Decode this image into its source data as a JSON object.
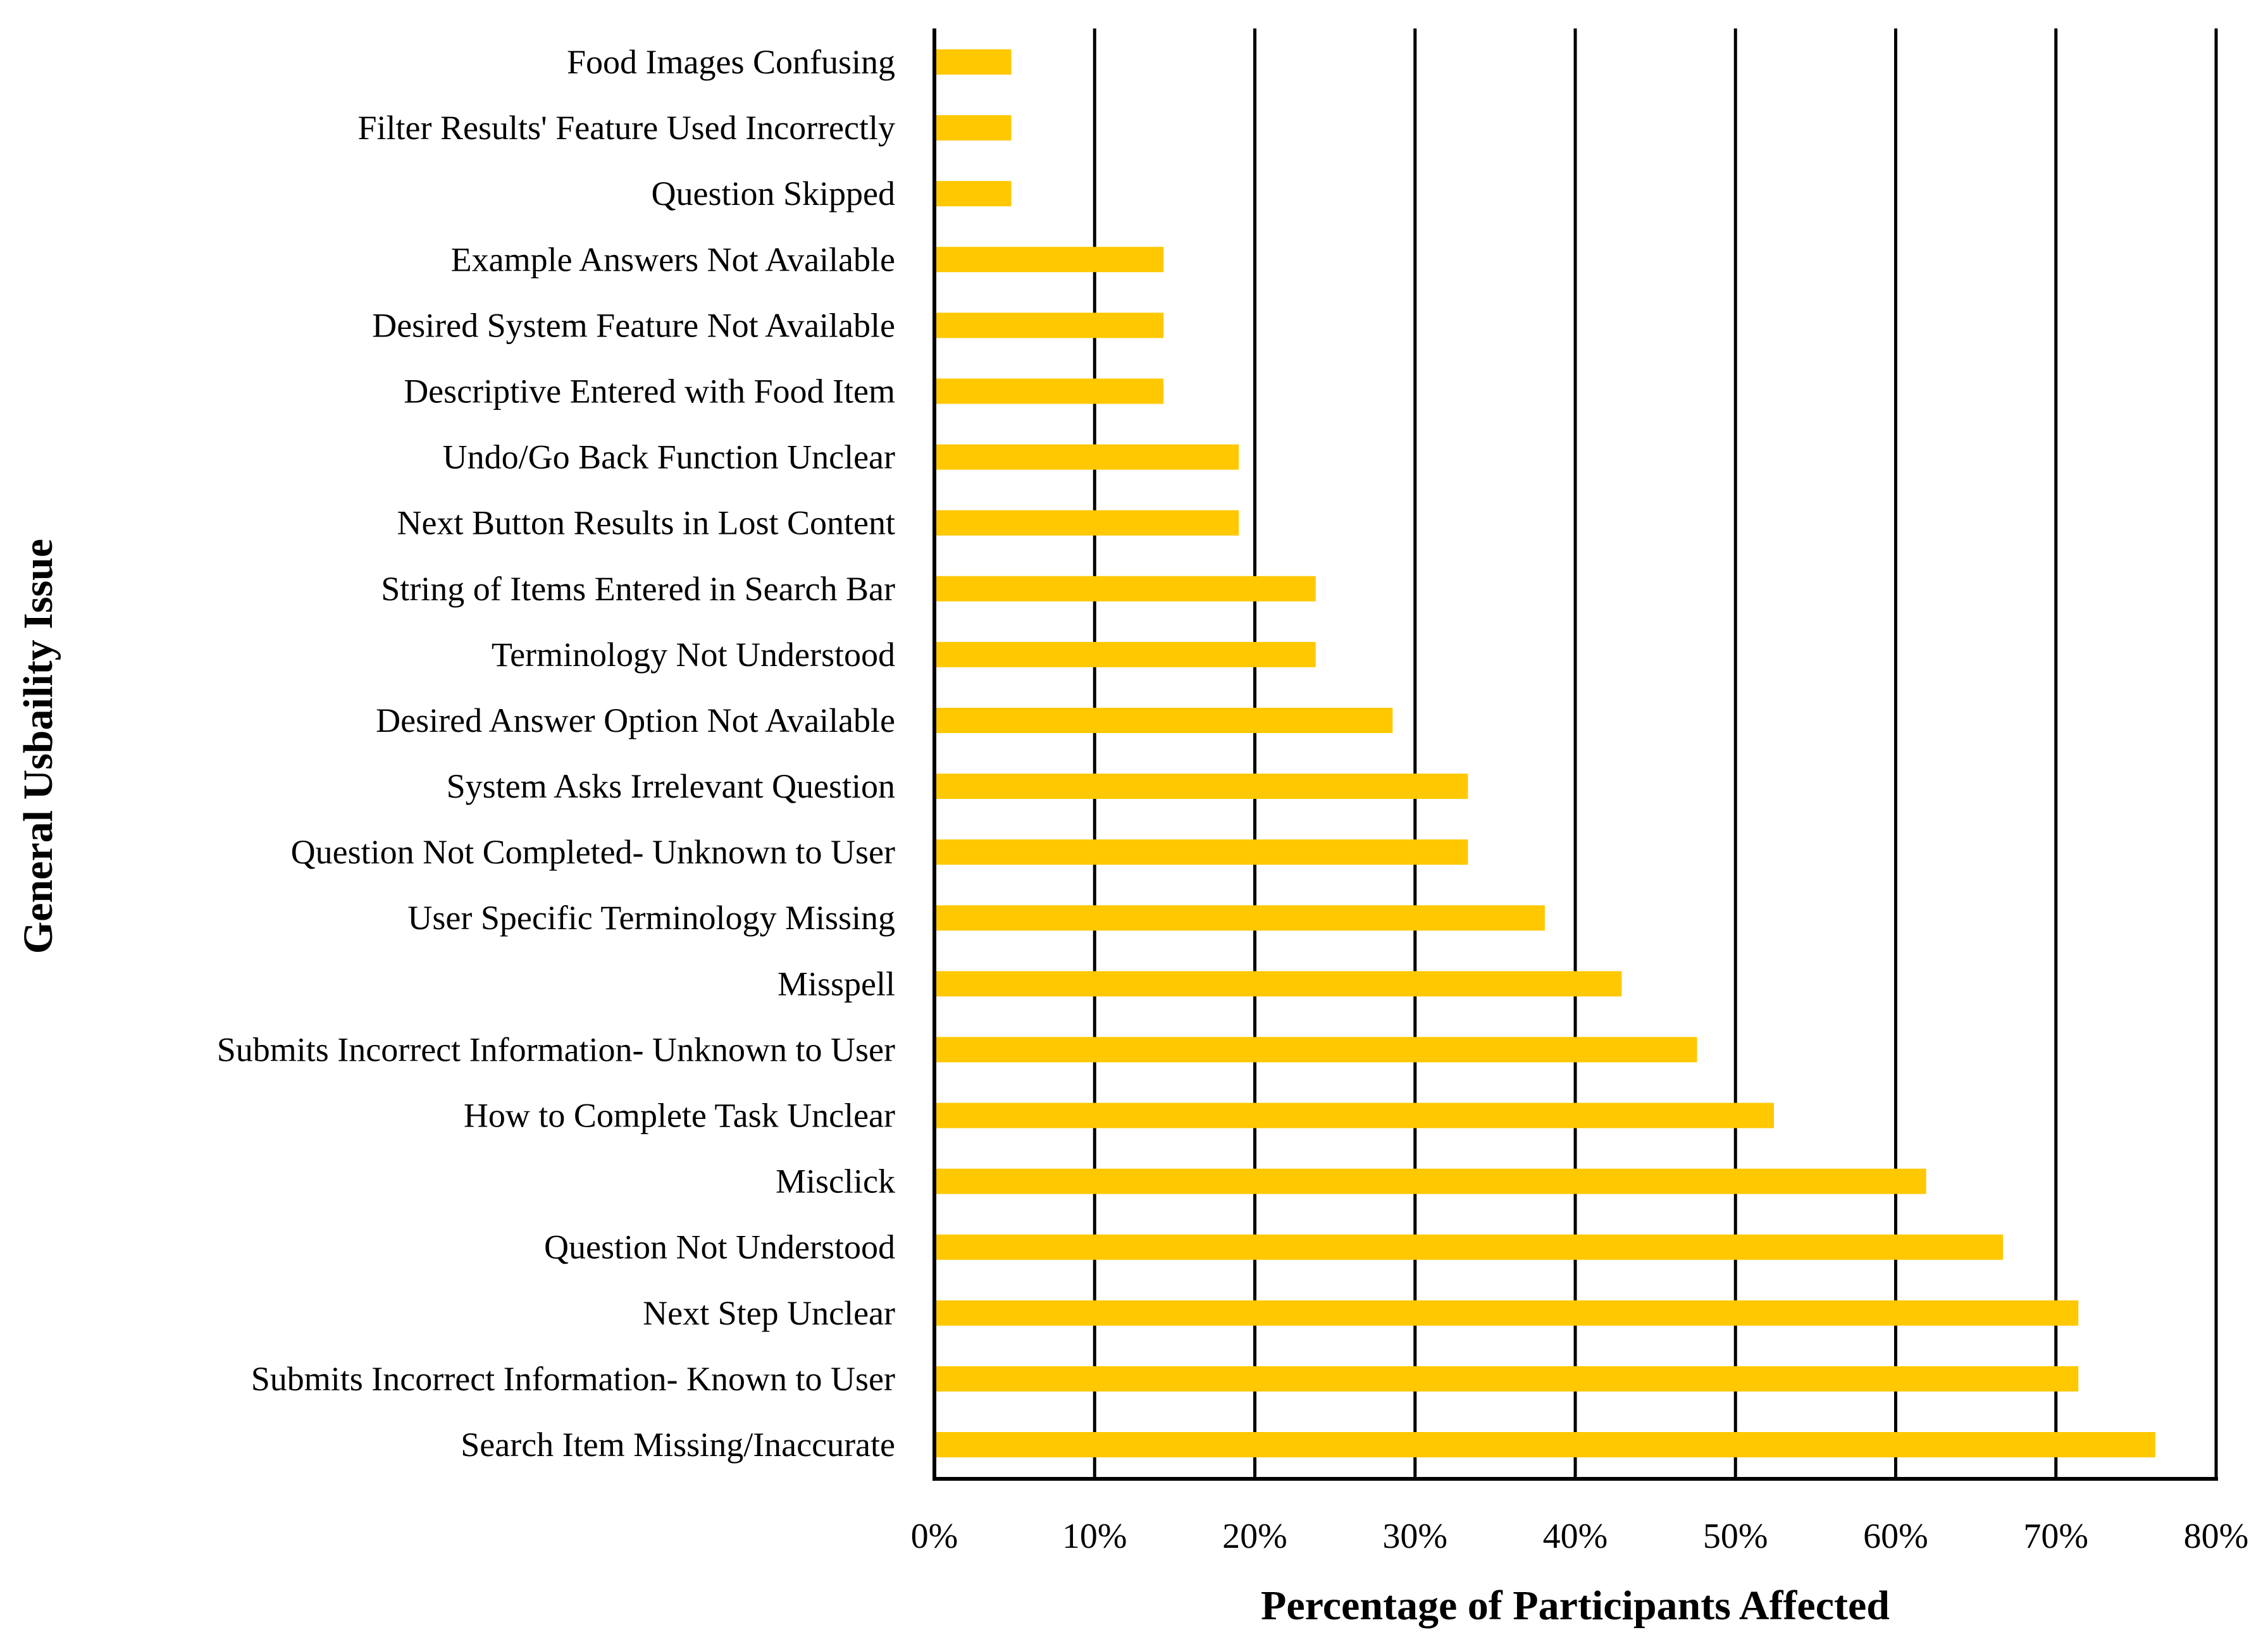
{
  "chart_data": {
    "type": "bar",
    "orientation": "horizontal",
    "title": "",
    "xlabel": "Percentage of Participants Affected",
    "ylabel": "General Usbaility Issue",
    "xlim": [
      0,
      80
    ],
    "x_ticks": [
      0,
      10,
      20,
      30,
      40,
      50,
      60,
      70,
      80
    ],
    "x_tick_labels": [
      "0%",
      "10%",
      "20%",
      "30%",
      "40%",
      "50%",
      "60%",
      "70%",
      "80%"
    ],
    "grid": "vertical",
    "bar_color": "#FFC800",
    "categories": [
      "Food Images Confusing",
      "Filter Results' Feature Used Incorrectly",
      "Question Skipped",
      "Example Answers Not Available",
      "Desired System Feature Not Available",
      "Descriptive Entered with Food Item",
      "Undo/Go Back Function Unclear",
      "Next Button Results in Lost Content",
      "String of Items Entered in Search Bar",
      "Terminology Not Understood",
      "Desired Answer Option Not Available",
      "System Asks Irrelevant Question",
      "Question Not Completed- Unknown to User",
      "User Specific Terminology Missing",
      "Misspell",
      "Submits Incorrect Information- Unknown to User",
      "How to Complete Task Unclear",
      "Misclick",
      "Question Not Understood",
      "Next Step Unclear",
      "Submits Incorrect Information- Known to User",
      "Search Item Missing/Inaccurate"
    ],
    "values": [
      4.8,
      4.8,
      4.8,
      14.3,
      14.3,
      14.3,
      19.0,
      19.0,
      23.8,
      23.8,
      28.6,
      33.3,
      33.3,
      38.1,
      42.9,
      47.6,
      52.4,
      61.9,
      66.7,
      71.4,
      71.4,
      76.2
    ]
  }
}
